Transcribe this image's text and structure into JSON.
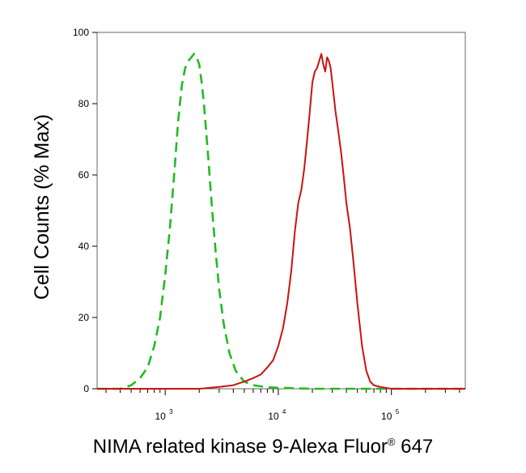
{
  "chart_data": {
    "type": "line",
    "title": "",
    "xlabel": "NIMA related kinase 9-Alexa Fluor",
    "xlabel_mark": "®",
    "xlabel_suffix": " 647",
    "ylabel": "Cell Counts (% Max)",
    "xscale": "log",
    "xlim": [
      250,
      450000
    ],
    "ylim": [
      0,
      100
    ],
    "yticks": [
      0,
      20,
      40,
      60,
      80,
      100
    ],
    "ytick_labels": [
      "0",
      "20",
      "40",
      "60",
      "80",
      "100"
    ],
    "xticks": [
      1000,
      10000,
      100000
    ],
    "xtick_labels": [
      {
        "base": "10",
        "exp": "3"
      },
      {
        "base": "10",
        "exp": "4"
      },
      {
        "base": "10",
        "exp": "5"
      }
    ],
    "grid": false,
    "legend": false,
    "series": [
      {
        "color": "#22bb22",
        "dash": "dashed",
        "x": [
          250,
          400,
          500,
          600,
          700,
          800,
          900,
          1000,
          1100,
          1200,
          1300,
          1400,
          1500,
          1600,
          1700,
          1800,
          1900,
          2000,
          2100,
          2200,
          2400,
          2600,
          2800,
          3000,
          3300,
          3700,
          4200,
          5000,
          6000,
          8000,
          12000,
          20000,
          50000,
          450000
        ],
        "y": [
          0,
          0,
          1,
          3,
          6,
          12,
          20,
          32,
          45,
          60,
          75,
          85,
          90,
          92,
          93,
          94,
          93,
          91,
          86,
          80,
          65,
          50,
          38,
          28,
          18,
          10,
          5,
          2,
          1,
          0.4,
          0.2,
          0,
          0,
          0
        ]
      },
      {
        "color": "#cc1111",
        "dash": "solid",
        "x": [
          250,
          2000,
          3000,
          4000,
          5000,
          6000,
          7000,
          8000,
          9000,
          10000,
          11000,
          12000,
          13000,
          14000,
          15000,
          16000,
          17000,
          18000,
          19000,
          20000,
          21000,
          22000,
          23000,
          24000,
          25000,
          26000,
          27000,
          28000,
          29000,
          30000,
          32000,
          34000,
          36000,
          38000,
          40000,
          43000,
          46000,
          50000,
          55000,
          60000,
          65000,
          70000,
          80000,
          100000,
          150000,
          450000
        ],
        "y": [
          0,
          0,
          0.5,
          1,
          2,
          3,
          4,
          6,
          8,
          12,
          17,
          24,
          33,
          44,
          52,
          56,
          62,
          70,
          78,
          86,
          89,
          90,
          92,
          94,
          91,
          89,
          93,
          92,
          90,
          86,
          78,
          72,
          66,
          59,
          52,
          45,
          36,
          24,
          12,
          5,
          2,
          1,
          0.5,
          0,
          0,
          0
        ]
      }
    ]
  }
}
